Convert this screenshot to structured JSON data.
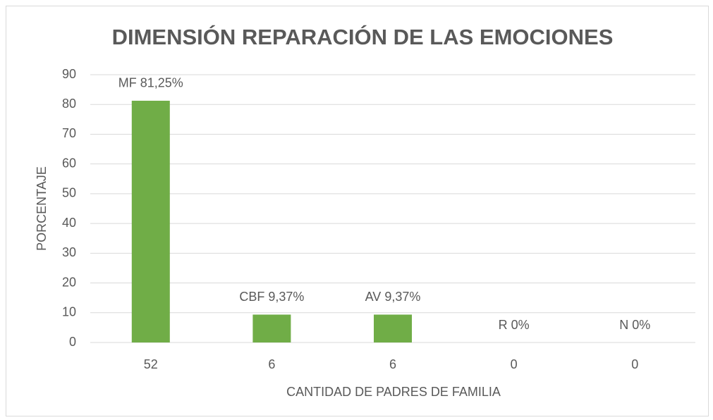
{
  "chart_data": {
    "type": "bar",
    "title": "DIMENSIÓN REPARACIÓN DE LAS EMOCIONES",
    "x_label": "CANTIDAD DE PADRES DE FAMILIA",
    "y_label": "PORCENTAJE",
    "categories": [
      "52",
      "6",
      "6",
      "0",
      "0"
    ],
    "values": [
      81.25,
      9.37,
      9.37,
      0,
      0
    ],
    "value_labels": [
      "MF 81,25%",
      "CBF 9,37%",
      "AV 9,37%",
      "R 0%",
      "N 0%"
    ],
    "color": "#70ad47",
    "ylim": [
      0,
      90
    ],
    "yticks": [
      0,
      10,
      20,
      30,
      40,
      50,
      60,
      70,
      80,
      90
    ],
    "grid": true
  }
}
